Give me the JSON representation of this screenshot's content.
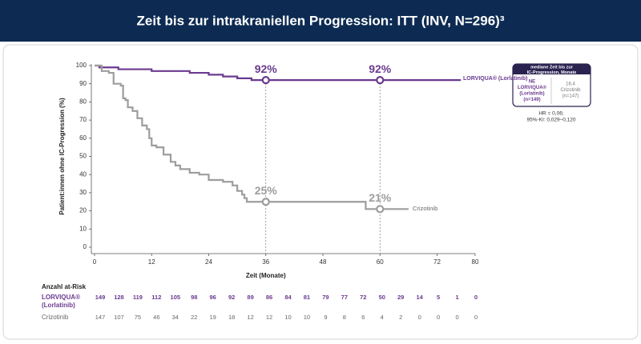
{
  "chart_data": {
    "type": "step",
    "title": "Zeit bis zur intrakraniellen Progression: ITT (INV, N=296)³",
    "x_label": "Zeit (Monate)",
    "y_label": "Patient:innen ohne IC-Progression (%)",
    "xlim": [
      0,
      80
    ],
    "xticks": [
      0,
      12,
      24,
      36,
      48,
      60,
      72,
      80
    ],
    "ylim": [
      0,
      100
    ],
    "yticks": [
      0,
      10,
      20,
      30,
      40,
      50,
      60,
      70,
      80,
      90,
      100
    ],
    "series": [
      {
        "name": "LORVIQUA® (Lorlatinib)",
        "color": "#6b3a8f",
        "x": [
          0,
          1,
          5,
          12,
          20,
          24,
          27,
          30,
          33,
          77
        ],
        "values": [
          100,
          99,
          98,
          97,
          96,
          95,
          94,
          93,
          92,
          92
        ],
        "markers": [
          {
            "x": 36,
            "value": 92,
            "label": "92%"
          },
          {
            "x": 60,
            "value": 92,
            "label": "92%"
          }
        ]
      },
      {
        "name": "Crizotinib",
        "color": "#9d9d9d",
        "x": [
          0,
          1.5,
          3,
          4,
          5.5,
          6,
          6.5,
          7,
          8,
          9,
          10,
          11,
          11.5,
          12,
          13,
          14.5,
          16,
          17,
          18,
          20,
          22,
          24,
          27,
          29,
          30,
          31,
          31.5,
          32,
          57,
          66
        ],
        "values": [
          100,
          97,
          96,
          90,
          89,
          82,
          81,
          77,
          75,
          71,
          67,
          65,
          60,
          56,
          55,
          51,
          47,
          45,
          43,
          41,
          40,
          37,
          36,
          34,
          31,
          29,
          27,
          25,
          21,
          21
        ],
        "markers": [
          {
            "x": 36,
            "value": 25,
            "label": "25%"
          },
          {
            "x": 60,
            "value": 21,
            "label": "21%"
          }
        ]
      }
    ],
    "median_box": {
      "title": [
        "mediane Zeit bis zur",
        "IC-Progression, Monate"
      ],
      "lorlatinib": [
        "NE",
        "LORVIQUA®",
        "(Lorlatinib)",
        "(n=149)"
      ],
      "crizotinib": [
        "16,4",
        "Crizotinib",
        "(n=147)"
      ]
    },
    "stats": [
      "HR = 0,06;",
      "95%-KI: 0,029–0,120"
    ],
    "at_risk": {
      "title": "Anzahl at-Risk",
      "rows": [
        {
          "name": [
            "LORVIQUA®",
            "(Lorlatinib)"
          ],
          "color": "#6b3a8f",
          "values": [
            149,
            128,
            119,
            112,
            105,
            98,
            96,
            92,
            89,
            86,
            84,
            81,
            79,
            77,
            72,
            50,
            29,
            14,
            5,
            1,
            0
          ]
        },
        {
          "name": [
            "Crizotinib"
          ],
          "color": "#666666",
          "values": [
            147,
            107,
            75,
            46,
            34,
            22,
            19,
            18,
            12,
            12,
            10,
            10,
            9,
            8,
            6,
            4,
            2,
            0,
            0,
            0,
            0
          ]
        }
      ]
    }
  }
}
